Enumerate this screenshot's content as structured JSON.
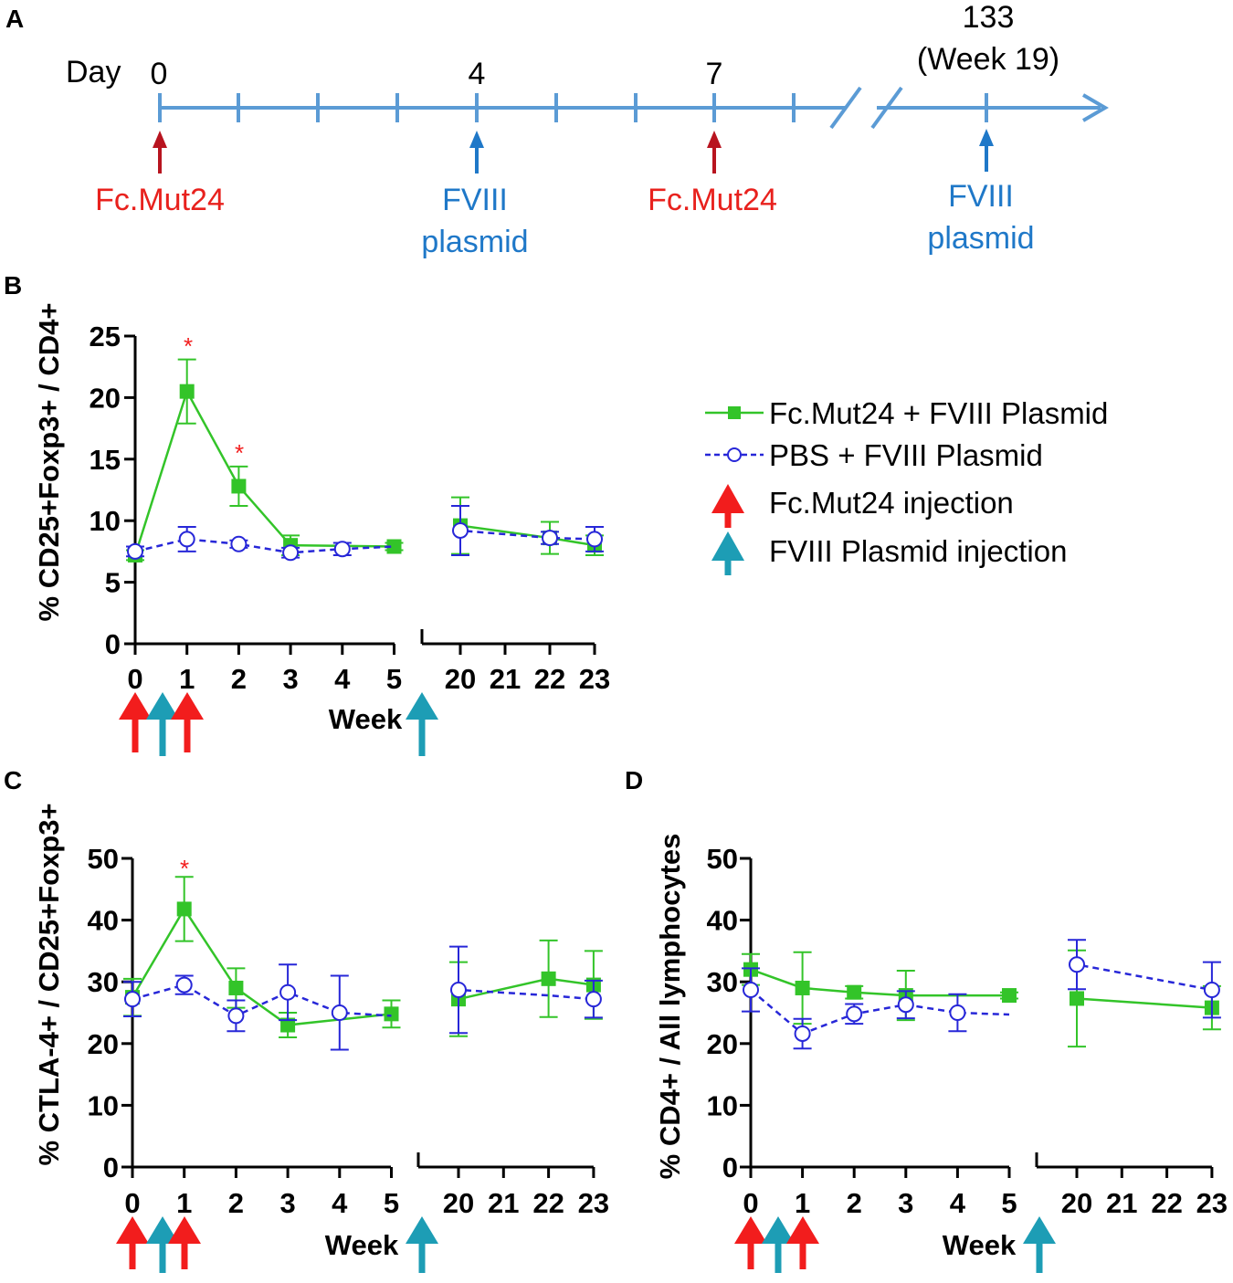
{
  "colors": {
    "green": "#33c429",
    "blue": "#2727d8",
    "red": "#f21d1d",
    "teal": "#1d9db5",
    "timeline": "#5b9bd5",
    "timeline_red": "#b8141f",
    "timeline_blue": "#1f78c8",
    "axis": "#000000"
  },
  "timeline": {
    "panel_label": "A",
    "day_label": "Day",
    "day_marks": [
      {
        "text": "0"
      },
      {
        "text": "4"
      },
      {
        "text": "7"
      },
      {
        "text": "133"
      }
    ],
    "week_note": "(Week 19)",
    "events": [
      {
        "day": "0",
        "lines": [
          "Fc.Mut24"
        ],
        "type": "fc"
      },
      {
        "day": "4",
        "lines": [
          "FVIII",
          "plasmid"
        ],
        "type": "fviii"
      },
      {
        "day": "7",
        "lines": [
          "Fc.Mut24"
        ],
        "type": "fc"
      },
      {
        "day": "133",
        "lines": [
          "FVIII",
          "plasmid"
        ],
        "type": "fviii"
      }
    ]
  },
  "legend": {
    "items": [
      {
        "label": "Fc.Mut24 + FVIII Plasmid",
        "symbol": "green-square-solid"
      },
      {
        "label": "PBS + FVIII Plasmid",
        "symbol": "blue-circle-dashed"
      },
      {
        "label": "Fc.Mut24 injection",
        "symbol": "red-arrow"
      },
      {
        "label": "FVIII Plasmid  injection",
        "symbol": "teal-arrow"
      }
    ]
  },
  "chart_data": [
    {
      "panel_label": "B",
      "type": "line",
      "ylabel": "% CD25+Foxp3+ / CD4+",
      "xlabel": "Week",
      "ylim": [
        0,
        25
      ],
      "yticks": [
        0,
        5,
        10,
        15,
        20,
        25
      ],
      "x_left": [
        0,
        1,
        2,
        3,
        4,
        5
      ],
      "x_right": [
        20,
        21,
        22,
        23
      ],
      "series": [
        {
          "name": "Fc.Mut24 + FVIII Plasmid",
          "left": [
            [
              0,
              7.2,
              0.4
            ],
            [
              1,
              20.5,
              2.6
            ],
            [
              2,
              12.8,
              1.6
            ],
            [
              3,
              8.0,
              0.8
            ],
            [
              5,
              7.9,
              0.3
            ]
          ],
          "right": [
            [
              19.9,
              9.4,
              0
            ],
            [
              20,
              9.6,
              2.3
            ],
            [
              22,
              8.6,
              1.3
            ],
            [
              23,
              8.0,
              0.8
            ]
          ]
        },
        {
          "name": "PBS + FVIII Plasmid",
          "left": [
            [
              0,
              7.5,
              0.4
            ],
            [
              1,
              8.5,
              1.0
            ],
            [
              2,
              8.1,
              0.3
            ],
            [
              3,
              7.4,
              0.4
            ],
            [
              4,
              7.7,
              0.5
            ],
            [
              5,
              7.9,
              0
            ]
          ],
          "right": [
            [
              19.9,
              9.0,
              0
            ],
            [
              20,
              9.2,
              2.0
            ],
            [
              22,
              8.6,
              0.5
            ],
            [
              23,
              8.5,
              1.0
            ]
          ]
        }
      ],
      "significance": [
        {
          "x": 1,
          "y": 23.2,
          "text": "*"
        },
        {
          "x": 2,
          "y": 14.5,
          "text": "*"
        }
      ],
      "injection_arrows": {
        "fc": [
          0,
          1
        ],
        "fviii_left": 0.5,
        "fviii_break": true
      }
    },
    {
      "panel_label": "C",
      "type": "line",
      "ylabel": "% CTLA-4+ / CD25+Foxp3+",
      "xlabel": "Week",
      "ylim": [
        0,
        50
      ],
      "yticks": [
        0,
        10,
        20,
        30,
        40,
        50
      ],
      "x_left": [
        0,
        1,
        2,
        3,
        4,
        5
      ],
      "x_right": [
        20,
        21,
        22,
        23
      ],
      "series": [
        {
          "name": "Fc.Mut24 + FVIII Plasmid",
          "left": [
            [
              0,
              27.5,
              3.0
            ],
            [
              1,
              41.8,
              5.2
            ],
            [
              2,
              29.0,
              3.2
            ],
            [
              3,
              23.0,
              2.0
            ],
            [
              5,
              24.8,
              2.2
            ]
          ],
          "right": [
            [
              19.9,
              27.0,
              0
            ],
            [
              20,
              27.2,
              6.0
            ],
            [
              22,
              30.5,
              6.2
            ],
            [
              23,
              29.5,
              5.5
            ]
          ]
        },
        {
          "name": "PBS + FVIII Plasmid",
          "left": [
            [
              0,
              27.2,
              2.8
            ],
            [
              1,
              29.5,
              1.5
            ],
            [
              2,
              24.5,
              2.5
            ],
            [
              3,
              28.3,
              4.5
            ],
            [
              4,
              25.0,
              6.0
            ],
            [
              5,
              24.5,
              0
            ]
          ],
          "right": [
            [
              19.9,
              28.6,
              0
            ],
            [
              20,
              28.7,
              7.0
            ],
            [
              22,
              27.8,
              0
            ],
            [
              23,
              27.2,
              3.0
            ]
          ]
        }
      ],
      "significance": [
        {
          "x": 1,
          "y": 48.5,
          "text": "*"
        }
      ],
      "injection_arrows": {
        "fc": [
          0,
          1
        ],
        "fviii_left": 0.5,
        "fviii_break": true
      }
    },
    {
      "panel_label": "D",
      "type": "line",
      "ylabel": "% CD4+ / All lymphocytes",
      "xlabel": "Week",
      "ylim": [
        0,
        50
      ],
      "yticks": [
        0,
        10,
        20,
        30,
        40,
        50
      ],
      "x_left": [
        0,
        1,
        2,
        3,
        4,
        5
      ],
      "x_right": [
        20,
        21,
        22,
        23
      ],
      "series": [
        {
          "name": "Fc.Mut24 + FVIII Plasmid",
          "left": [
            [
              0,
              32.0,
              2.5
            ],
            [
              1,
              29.0,
              5.8
            ],
            [
              2,
              28.3,
              1.0
            ],
            [
              3,
              27.8,
              4.0
            ],
            [
              5,
              27.8,
              0.5
            ]
          ],
          "right": [
            [
              19.9,
              27.2,
              0
            ],
            [
              20,
              27.3,
              7.8
            ],
            [
              23,
              25.8,
              3.5
            ]
          ]
        },
        {
          "name": "PBS + FVIII Plasmid",
          "left": [
            [
              0,
              28.7,
              3.5
            ],
            [
              1,
              21.6,
              2.4
            ],
            [
              2,
              24.8,
              1.6
            ],
            [
              3,
              26.3,
              2.2
            ],
            [
              4,
              25.0,
              3.0
            ],
            [
              5,
              24.7,
              0
            ]
          ],
          "right": [
            [
              19.9,
              32.2,
              0
            ],
            [
              20,
              32.8,
              4.0
            ],
            [
              23,
              28.7,
              4.5
            ]
          ]
        }
      ],
      "significance": [],
      "injection_arrows": {
        "fc": [
          0,
          1
        ],
        "fviii_left": 0.5,
        "fviii_break": true
      }
    }
  ]
}
